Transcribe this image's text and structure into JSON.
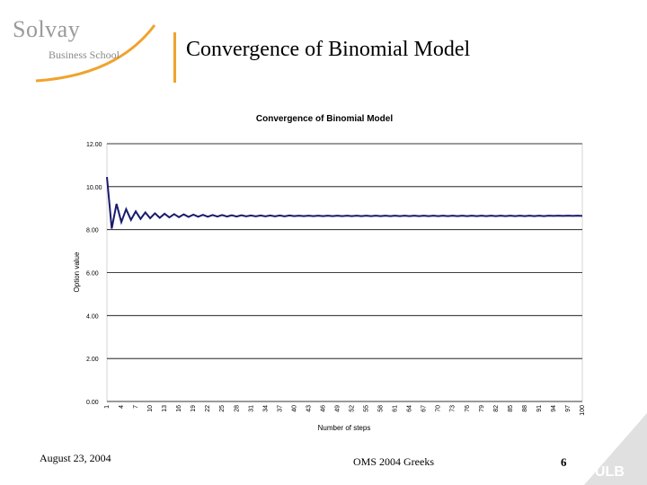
{
  "logo": {
    "name": "Solvay",
    "subtitle": "Business School"
  },
  "slide": {
    "title": "Convergence of Binomial Model"
  },
  "footer": {
    "date": "August 23, 2004",
    "course": "OMS 2004 Greeks",
    "page": "6",
    "ulb": "ULB"
  },
  "colors": {
    "accent": "#f0a32c",
    "series": "#1a1a6e"
  },
  "chart_data": {
    "type": "line",
    "title": "Convergence of Binomial Model",
    "xlabel": "Number of steps",
    "ylabel": "Option value",
    "ylim": [
      0,
      12
    ],
    "y_ticks": [
      "0.00",
      "2.00",
      "4.00",
      "6.00",
      "8.00",
      "10.00",
      "12.00"
    ],
    "x_tick_labels": [
      "1",
      "4",
      "7",
      "10",
      "13",
      "16",
      "19",
      "22",
      "25",
      "28",
      "31",
      "34",
      "37",
      "40",
      "43",
      "46",
      "49",
      "52",
      "55",
      "58",
      "61",
      "64",
      "67",
      "70",
      "73",
      "76",
      "79",
      "82",
      "85",
      "88",
      "91",
      "94",
      "97",
      "100"
    ],
    "grid": "horizontal",
    "legend": "none",
    "series": [
      {
        "x": [
          1,
          2,
          3,
          4,
          5,
          6,
          7,
          8,
          9,
          10,
          11,
          12,
          13,
          14,
          15,
          16,
          17,
          18,
          19,
          20,
          21,
          22,
          23,
          24,
          25,
          26,
          27,
          28,
          29,
          30,
          31,
          32,
          33,
          34,
          35,
          36,
          37,
          38,
          39,
          40,
          41,
          42,
          43,
          44,
          45,
          46,
          47,
          48,
          49,
          50,
          51,
          52,
          53,
          54,
          55,
          56,
          57,
          58,
          59,
          60,
          61,
          62,
          63,
          64,
          65,
          66,
          67,
          68,
          69,
          70,
          71,
          72,
          73,
          74,
          75,
          76,
          77,
          78,
          79,
          80,
          81,
          82,
          83,
          84,
          85,
          86,
          87,
          88,
          89,
          90,
          91,
          92,
          93,
          94,
          95,
          96,
          97,
          98,
          99,
          100
        ],
        "values": [
          10.45,
          8.05,
          9.2,
          8.35,
          8.95,
          8.45,
          8.85,
          8.5,
          8.8,
          8.53,
          8.76,
          8.55,
          8.74,
          8.57,
          8.72,
          8.58,
          8.71,
          8.59,
          8.7,
          8.6,
          8.69,
          8.6,
          8.68,
          8.61,
          8.68,
          8.61,
          8.67,
          8.61,
          8.67,
          8.62,
          8.66,
          8.62,
          8.66,
          8.62,
          8.66,
          8.62,
          8.66,
          8.62,
          8.66,
          8.63,
          8.65,
          8.63,
          8.65,
          8.63,
          8.65,
          8.63,
          8.65,
          8.63,
          8.65,
          8.63,
          8.65,
          8.63,
          8.65,
          8.63,
          8.65,
          8.63,
          8.65,
          8.63,
          8.65,
          8.63,
          8.65,
          8.63,
          8.65,
          8.63,
          8.65,
          8.63,
          8.65,
          8.63,
          8.65,
          8.63,
          8.65,
          8.63,
          8.65,
          8.63,
          8.65,
          8.63,
          8.65,
          8.63,
          8.65,
          8.63,
          8.65,
          8.63,
          8.65,
          8.63,
          8.65,
          8.63,
          8.65,
          8.63,
          8.65,
          8.63,
          8.65,
          8.63,
          8.65,
          8.64,
          8.65,
          8.64,
          8.65,
          8.64,
          8.65,
          8.64
        ]
      }
    ]
  }
}
